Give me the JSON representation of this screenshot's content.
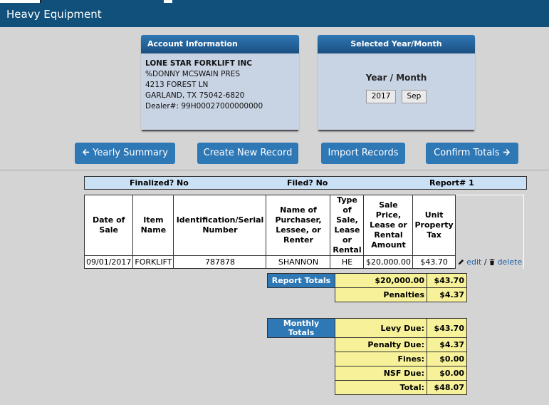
{
  "header": {
    "title": "Heavy Equipment"
  },
  "account": {
    "panel_title": "Account Information",
    "name": "LONE STAR FORKLIFT INC",
    "attn": "%DONNY MCSWAIN PRES",
    "address1": "4213 FOREST LN",
    "address2": "GARLAND, TX 75042-6820",
    "dealer": "Dealer#: 99H00027000000000"
  },
  "period": {
    "panel_title": "Selected Year/Month",
    "label": "Year / Month",
    "year": "2017",
    "month": "Sep"
  },
  "buttons": {
    "yearly": "Yearly Summary",
    "create": "Create New Record",
    "import": "Import Records",
    "confirm": "Confirm Totals"
  },
  "status": {
    "finalized": "Finalized? No",
    "filed": "Filed? No",
    "report": "Report# 1"
  },
  "table": {
    "headers": {
      "date": "Date of Sale",
      "item": "Item Name",
      "serial": "Identification/Serial Number",
      "purchaser": "Name of Purchaser, Lessee, or Renter",
      "type": "Type of Sale, Lease or Rental",
      "price": "Sale Price, Lease or Rental Amount",
      "tax": "Unit Property Tax"
    },
    "rows": [
      {
        "date": "09/01/2017",
        "item": "FORKLIFT",
        "serial": "787878",
        "purchaser": "SHANNON",
        "type": "HE",
        "price": "$20,000.00",
        "tax": "$43.70",
        "edit": "edit",
        "sep": "/",
        "delete": "delete"
      }
    ]
  },
  "report_totals": {
    "header": "Report Totals",
    "price_total": "$20,000.00",
    "tax_total": "$43.70",
    "penalties_label": "Penalties",
    "penalties": "$4.37"
  },
  "monthly_totals": {
    "header": "Monthly Totals",
    "levy_label": "Levy Due:",
    "levy": "$43.70",
    "penalty_label": "Penalty Due:",
    "penalty": "$4.37",
    "fines_label": "Fines:",
    "fines": "$0.00",
    "nsf_label": "NSF Due:",
    "nsf": "$0.00",
    "total_label": "Total:",
    "total": "$48.07"
  },
  "colors": {
    "header_bg": "#11507a",
    "button_bg": "#2f78b6",
    "totals_bg": "#f7f29a",
    "status_bg": "#c9e0f5"
  },
  "icons": {
    "back": "arrow-left-icon",
    "forward": "arrow-right-icon",
    "edit": "pencil-icon",
    "delete": "trash-icon"
  }
}
